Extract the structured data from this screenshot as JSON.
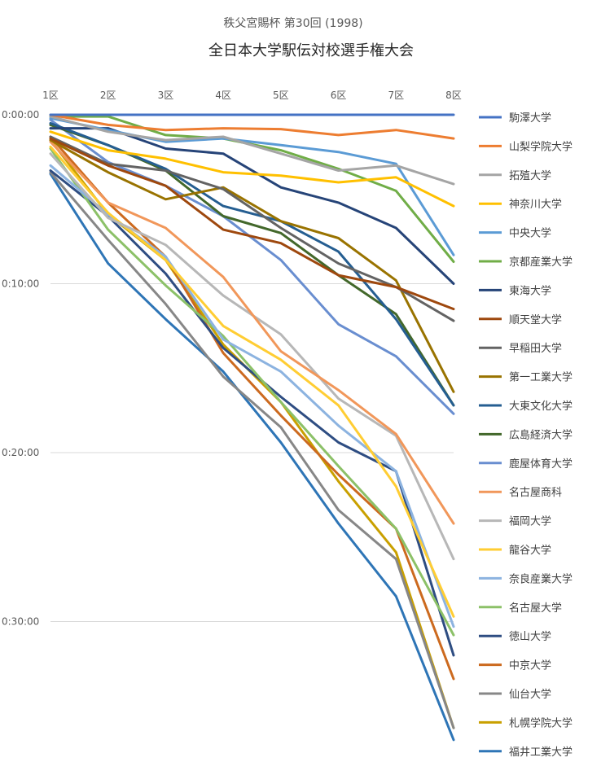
{
  "chart_data": {
    "type": "line",
    "subtitle": "秩父宮賜杯 第30回 (1998)",
    "title": "全日本大学駅伝対校選手権大会",
    "categories": [
      "1区",
      "2区",
      "3区",
      "4区",
      "5区",
      "6区",
      "7区",
      "8区"
    ],
    "y_ticks": [
      "0:00:00",
      "0:10:00",
      "0:20:00",
      "0:30:00"
    ],
    "ylim_minutes": [
      0,
      37
    ],
    "y_inverted": true,
    "grid": true,
    "legend_position": "right",
    "series": [
      {
        "name": "駒澤大学",
        "color": "#4472C4",
        "values": [
          0.0,
          0.0,
          0.0,
          0.0,
          0.0,
          0.0,
          0.0,
          0.0
        ]
      },
      {
        "name": "山梨学院大学",
        "color": "#ED7D31",
        "values": [
          0.0,
          0.6,
          0.9,
          0.8,
          0.85,
          1.2,
          0.9,
          1.4
        ]
      },
      {
        "name": "拓殖大学",
        "color": "#A5A5A5",
        "values": [
          0.1,
          1.0,
          1.5,
          1.3,
          2.3,
          3.3,
          3.0,
          4.1
        ]
      },
      {
        "name": "神奈川大学",
        "color": "#FFC000",
        "values": [
          1.0,
          2.1,
          2.6,
          3.4,
          3.6,
          4.0,
          3.7,
          5.4
        ]
      },
      {
        "name": "中央大学",
        "color": "#5B9BD5",
        "values": [
          0.2,
          0.9,
          1.6,
          1.4,
          1.8,
          2.2,
          2.9,
          8.3
        ]
      },
      {
        "name": "京都産業大学",
        "color": "#70AD47",
        "values": [
          0.1,
          0.1,
          1.2,
          1.4,
          2.1,
          3.2,
          4.5,
          8.7
        ]
      },
      {
        "name": "東海大学",
        "color": "#264478",
        "values": [
          0.8,
          0.8,
          2.0,
          2.3,
          4.3,
          5.2,
          6.7,
          10.0
        ]
      },
      {
        "name": "順天堂大学",
        "color": "#9E480E",
        "values": [
          1.4,
          3.0,
          4.2,
          6.8,
          7.6,
          9.5,
          10.2,
          11.5
        ]
      },
      {
        "name": "早稲田大学",
        "color": "#636363",
        "values": [
          1.3,
          2.9,
          3.3,
          4.4,
          6.7,
          8.8,
          10.2,
          12.2
        ]
      },
      {
        "name": "第一工業大学",
        "color": "#997300",
        "values": [
          1.5,
          3.4,
          5.0,
          4.3,
          6.3,
          7.3,
          9.8,
          16.4
        ]
      },
      {
        "name": "大東文化大学",
        "color": "#255E91",
        "values": [
          0.5,
          1.8,
          3.2,
          5.4,
          6.3,
          8.1,
          12.1,
          17.2
        ]
      },
      {
        "name": "広島経済大学",
        "color": "#43682B",
        "values": [
          0.6,
          1.8,
          3.3,
          6.0,
          7.0,
          9.5,
          11.8,
          17.2
        ]
      },
      {
        "name": "鹿屋体育大学",
        "color": "#698ED0",
        "values": [
          0.3,
          2.8,
          4.2,
          6.0,
          8.6,
          12.4,
          14.3,
          17.7
        ]
      },
      {
        "name": "名古屋商科",
        "color": "#F1975A",
        "values": [
          1.6,
          5.2,
          6.7,
          9.6,
          14.0,
          16.3,
          18.9,
          24.2
        ]
      },
      {
        "name": "福岡大学",
        "color": "#B7B7B7",
        "values": [
          2.3,
          6.1,
          7.7,
          10.7,
          13.0,
          16.8,
          19.0,
          26.3
        ]
      },
      {
        "name": "龍谷大学",
        "color": "#FFCD33",
        "values": [
          1.9,
          5.8,
          8.6,
          12.5,
          14.5,
          17.2,
          22.0,
          29.7
        ]
      },
      {
        "name": "奈良産業大学",
        "color": "#8CB3E0",
        "values": [
          3.0,
          5.9,
          8.4,
          13.3,
          15.2,
          18.4,
          21.1,
          30.3
        ]
      },
      {
        "name": "名古屋大学",
        "color": "#8CC168",
        "values": [
          2.0,
          6.8,
          10.1,
          13.1,
          17.0,
          20.8,
          24.5,
          30.8
        ]
      },
      {
        "name": "徳山大学",
        "color": "#2E4D82",
        "values": [
          3.3,
          6.0,
          9.4,
          13.8,
          16.7,
          19.4,
          21.1,
          32.0
        ]
      },
      {
        "name": "中京大学",
        "color": "#CC6A1F",
        "values": [
          1.3,
          5.2,
          8.4,
          14.1,
          17.8,
          21.3,
          24.5,
          33.4
        ]
      },
      {
        "name": "仙台大学",
        "color": "#878787",
        "values": [
          3.4,
          7.4,
          11.2,
          15.5,
          18.5,
          23.4,
          26.3,
          36.3
        ]
      },
      {
        "name": "札幌学院大学",
        "color": "#C9A000",
        "values": [
          1.5,
          5.9,
          8.6,
          13.6,
          17.0,
          21.7,
          25.9,
          36.3
        ]
      },
      {
        "name": "福井工業大学",
        "color": "#2E75B6",
        "values": [
          3.5,
          8.8,
          12.1,
          15.2,
          19.4,
          24.2,
          28.5,
          37.0
        ]
      }
    ]
  }
}
